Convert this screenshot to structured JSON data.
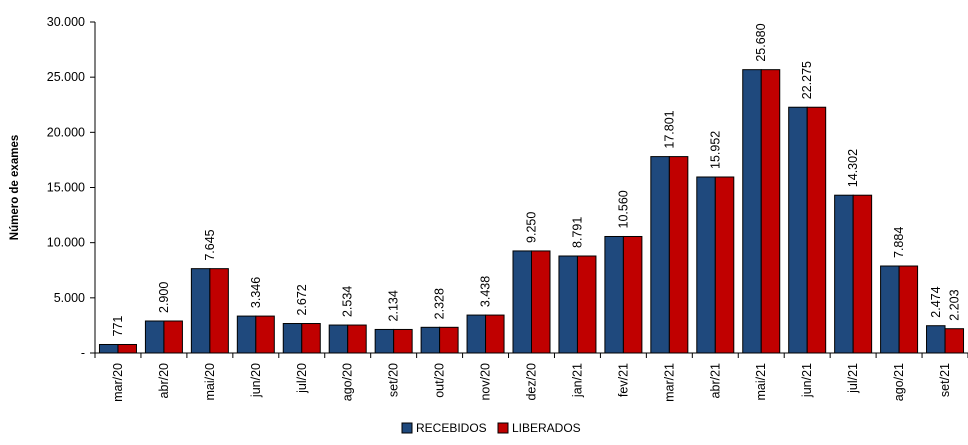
{
  "chart_data": {
    "type": "bar",
    "title": "",
    "xlabel": "",
    "ylabel": "Número de exames",
    "ylim": [
      0,
      30000
    ],
    "y_ticks": [
      {
        "value": 0,
        "label": "-"
      },
      {
        "value": 5000,
        "label": "5.000"
      },
      {
        "value": 10000,
        "label": "10.000"
      },
      {
        "value": 15000,
        "label": "15.000"
      },
      {
        "value": 20000,
        "label": "20.000"
      },
      {
        "value": 25000,
        "label": "25.000"
      },
      {
        "value": 30000,
        "label": "30.000"
      }
    ],
    "categories": [
      "mar/20",
      "abr/20",
      "mai/20",
      "jun/20",
      "jul/20",
      "ago/20",
      "set/20",
      "out/20",
      "nov/20",
      "dez/20",
      "jan/21",
      "fev/21",
      "mar/21",
      "abr/21",
      "mai/21",
      "jun/21",
      "jul/21",
      "ago/21",
      "set/21"
    ],
    "series": [
      {
        "name": "RECEBIDOS",
        "color": "#1F497D",
        "values": [
          771,
          2900,
          7645,
          3346,
          2672,
          2534,
          2134,
          2328,
          3438,
          9250,
          8791,
          10560,
          17801,
          15952,
          25680,
          22275,
          14302,
          7884,
          2474
        ]
      },
      {
        "name": "LIBERADOS",
        "color": "#C00000",
        "values": [
          771,
          2900,
          7645,
          3346,
          2672,
          2534,
          2134,
          2328,
          3438,
          9250,
          8791,
          10560,
          17801,
          15952,
          25680,
          22275,
          14302,
          7884,
          2203
        ]
      }
    ],
    "data_labels": [
      {
        "text": "771"
      },
      {
        "text": "2.900"
      },
      {
        "text": "7.645"
      },
      {
        "text": "3.346"
      },
      {
        "text": "2.672"
      },
      {
        "text": "2.534"
      },
      {
        "text": "2.134"
      },
      {
        "text": "2.328"
      },
      {
        "text": "3.438"
      },
      {
        "text": "9.250"
      },
      {
        "text": "8.791"
      },
      {
        "text": "10.560"
      },
      {
        "text": "17.801"
      },
      {
        "text": "15.952"
      },
      {
        "text": "25.680"
      },
      {
        "text": "22.275"
      },
      {
        "text": "14.302"
      },
      {
        "text": "7.884"
      },
      {
        "text": "2.474"
      },
      {
        "text": "2.203"
      }
    ],
    "grid": false,
    "legend_placement": "bottom-center"
  }
}
